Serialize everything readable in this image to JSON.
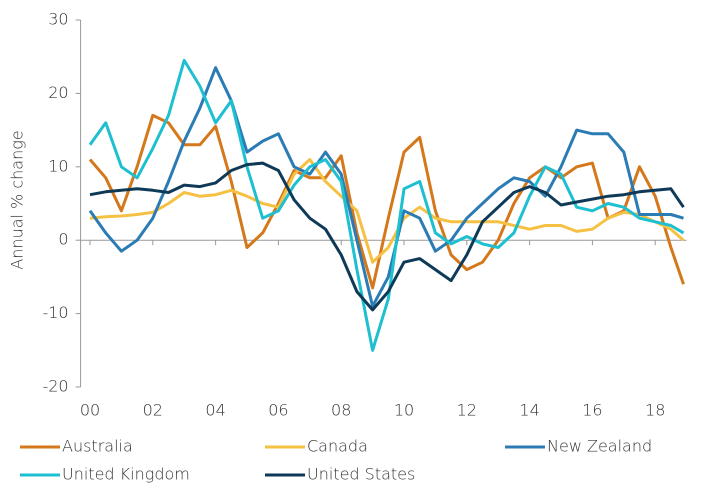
{
  "chart_data": {
    "type": "line",
    "y_label": "Annual % change",
    "x": [
      2000,
      2000.5,
      2001,
      2001.5,
      2002,
      2002.5,
      2003,
      2003.5,
      2004,
      2004.5,
      2005,
      2005.5,
      2006,
      2006.5,
      2007,
      2007.5,
      2008,
      2008.5,
      2009,
      2009.5,
      2010,
      2010.5,
      2011,
      2011.5,
      2012,
      2012.5,
      2013,
      2013.5,
      2014,
      2014.5,
      2015,
      2015.5,
      2016,
      2016.5,
      2017,
      2017.5,
      2018,
      2018.5,
      2018.9
    ],
    "series": [
      {
        "name": "Australia",
        "color": "#d4781b",
        "values": [
          11,
          8.5,
          4,
          10,
          17,
          16,
          13,
          13,
          15.5,
          8,
          -1,
          1,
          5,
          9.5,
          8.5,
          8.5,
          11.5,
          1,
          -6.5,
          3,
          12,
          14,
          4,
          -2,
          -4,
          -3,
          0,
          5,
          8.5,
          10,
          8.5,
          10,
          10.5,
          3,
          4,
          10,
          6,
          -1,
          -6
        ]
      },
      {
        "name": "Canada",
        "color": "#f6c142",
        "values": [
          3,
          3.2,
          3.3,
          3.5,
          3.8,
          5,
          6.5,
          6,
          6.2,
          6.8,
          6,
          5,
          4.5,
          9,
          11,
          8,
          6,
          4,
          -3,
          -1,
          3,
          4.5,
          3,
          2.5,
          2.5,
          2.5,
          2.5,
          2,
          1.5,
          2,
          2,
          1.2,
          1.5,
          3,
          3.8,
          3.5,
          2.5,
          1.5,
          0
        ]
      },
      {
        "name": "New Zealand",
        "color": "#2b7bb4",
        "values": [
          4,
          1,
          -1.5,
          0,
          3,
          8,
          13.5,
          18,
          23.5,
          19,
          12,
          13.5,
          14.5,
          10,
          9,
          12,
          9,
          0,
          -9,
          -5,
          4,
          3,
          -1.5,
          0,
          3,
          5,
          7,
          8.5,
          8,
          6,
          10,
          15,
          14.5,
          14.5,
          12,
          3.5,
          3.5,
          3.5,
          3
        ]
      },
      {
        "name": "United Kingdom",
        "color": "#1dbfd0",
        "values": [
          13,
          16,
          10,
          8.5,
          12.5,
          17,
          24.5,
          21,
          16,
          19,
          10,
          3,
          4,
          7.5,
          10,
          11,
          8,
          -4,
          -15,
          -8,
          7,
          8,
          1,
          -0.5,
          0.5,
          -0.5,
          -1,
          1,
          6,
          10,
          9,
          4.5,
          4,
          5,
          4.5,
          3,
          2.5,
          2,
          1
        ]
      },
      {
        "name": "United States",
        "color": "#0e3a58",
        "values": [
          6.2,
          6.6,
          6.8,
          7,
          6.8,
          6.5,
          7.5,
          7.3,
          7.8,
          9.5,
          10.3,
          10.5,
          9.5,
          5.5,
          3,
          1.5,
          -2,
          -7,
          -9.5,
          -7,
          -3,
          -2.5,
          -4,
          -5.5,
          -2,
          2.5,
          4.5,
          6.5,
          7.3,
          6.5,
          4.8,
          5.2,
          5.6,
          6,
          6.2,
          6.6,
          6.8,
          7,
          4.5
        ]
      }
    ],
    "xlim": [
      1999.7,
      2019
    ],
    "xticks": [
      {
        "value": 2000,
        "label": "00"
      },
      {
        "value": 2002,
        "label": "02"
      },
      {
        "value": 2004,
        "label": "04"
      },
      {
        "value": 2006,
        "label": "06"
      },
      {
        "value": 2008,
        "label": "08"
      },
      {
        "value": 2010,
        "label": "10"
      },
      {
        "value": 2012,
        "label": "12"
      },
      {
        "value": 2014,
        "label": "14"
      },
      {
        "value": 2016,
        "label": "16"
      },
      {
        "value": 2018,
        "label": "18"
      }
    ],
    "ylim": [
      -20,
      30
    ],
    "yticks": [
      -20,
      -10,
      0,
      10,
      20,
      30
    ],
    "grid": false
  }
}
